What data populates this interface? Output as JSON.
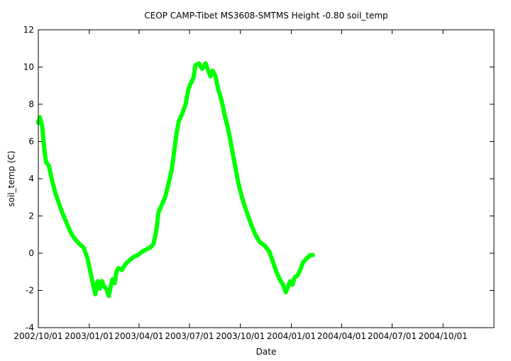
{
  "chart_data": {
    "type": "line",
    "title": "CEOP CAMP-Tibet MS3608-SMTMS Height -0.80 soil_temp",
    "xlabel": "Date",
    "ylabel": "soil_temp (C)",
    "ylim": [
      -4,
      12
    ],
    "xlim": [
      "2002/10/01",
      "2005/01/01"
    ],
    "y_ticks": [
      -4,
      -2,
      0,
      2,
      4,
      6,
      8,
      10,
      12
    ],
    "x_ticks": [
      {
        "date": "2002/10/01",
        "label": "2002/10/01"
      },
      {
        "date": "2003/01/01",
        "label": "2003/01/01"
      },
      {
        "date": "2003/04/01",
        "label": "2003/04/01"
      },
      {
        "date": "2003/07/01",
        "label": "2003/07/01"
      },
      {
        "date": "2003/10/01",
        "label": "2003/10/01"
      },
      {
        "date": "2004/01/01",
        "label": "2004/01/01"
      },
      {
        "date": "2004/04/01",
        "label": "2004/04/01"
      },
      {
        "date": "2004/07/01",
        "label": "2004/07/01"
      },
      {
        "date": "2004/10/01",
        "label": "2004/10/01"
      }
    ],
    "grid": false,
    "series": [
      {
        "color": "#00ff00",
        "points": [
          [
            "2002/10/01",
            7.0
          ],
          [
            "2002/10/04",
            7.3
          ],
          [
            "2002/10/08",
            6.8
          ],
          [
            "2002/10/12",
            5.5
          ],
          [
            "2002/10/15",
            4.9
          ],
          [
            "2002/10/20",
            4.7
          ],
          [
            "2002/10/26",
            3.9
          ],
          [
            "2002/11/01",
            3.2
          ],
          [
            "2002/11/07",
            2.7
          ],
          [
            "2002/11/13",
            2.2
          ],
          [
            "2002/11/20",
            1.7
          ],
          [
            "2002/11/27",
            1.2
          ],
          [
            "2002/12/05",
            0.8
          ],
          [
            "2002/12/14",
            0.5
          ],
          [
            "2002/12/22",
            0.3
          ],
          [
            "2002/12/29",
            -0.3
          ],
          [
            "2003/01/03",
            -1.0
          ],
          [
            "2003/01/08",
            -1.7
          ],
          [
            "2003/01/12",
            -2.2
          ],
          [
            "2003/01/16",
            -1.5
          ],
          [
            "2003/01/20",
            -1.9
          ],
          [
            "2003/01/24",
            -1.5
          ],
          [
            "2003/01/28",
            -1.8
          ],
          [
            "2003/02/01",
            -1.9
          ],
          [
            "2003/02/05",
            -2.3
          ],
          [
            "2003/02/08",
            -1.9
          ],
          [
            "2003/02/12",
            -1.4
          ],
          [
            "2003/02/16",
            -1.6
          ],
          [
            "2003/02/19",
            -1.0
          ],
          [
            "2003/02/23",
            -0.8
          ],
          [
            "2003/03/01",
            -0.9
          ],
          [
            "2003/03/07",
            -0.6
          ],
          [
            "2003/03/14",
            -0.4
          ],
          [
            "2003/03/22",
            -0.2
          ],
          [
            "2003/03/30",
            -0.1
          ],
          [
            "2003/04/07",
            0.1
          ],
          [
            "2003/04/14",
            0.2
          ],
          [
            "2003/04/21",
            0.3
          ],
          [
            "2003/04/27",
            0.5
          ],
          [
            "2003/05/02",
            1.2
          ],
          [
            "2003/05/06",
            2.2
          ],
          [
            "2003/05/12",
            2.6
          ],
          [
            "2003/05/18",
            3.0
          ],
          [
            "2003/05/24",
            3.7
          ],
          [
            "2003/05/30",
            4.5
          ],
          [
            "2003/06/04",
            5.6
          ],
          [
            "2003/06/08",
            6.5
          ],
          [
            "2003/06/12",
            7.1
          ],
          [
            "2003/06/18",
            7.5
          ],
          [
            "2003/06/24",
            8.0
          ],
          [
            "2003/06/29",
            8.8
          ],
          [
            "2003/07/03",
            9.1
          ],
          [
            "2003/07/08",
            9.4
          ],
          [
            "2003/07/12",
            10.1
          ],
          [
            "2003/07/18",
            10.2
          ],
          [
            "2003/07/24",
            9.9
          ],
          [
            "2003/07/30",
            10.2
          ],
          [
            "2003/08/04",
            9.8
          ],
          [
            "2003/08/08",
            9.5
          ],
          [
            "2003/08/12",
            9.8
          ],
          [
            "2003/08/17",
            9.5
          ],
          [
            "2003/08/22",
            8.8
          ],
          [
            "2003/08/28",
            8.2
          ],
          [
            "2003/09/02",
            7.5
          ],
          [
            "2003/09/07",
            6.9
          ],
          [
            "2003/09/12",
            6.2
          ],
          [
            "2003/09/17",
            5.4
          ],
          [
            "2003/09/22",
            4.6
          ],
          [
            "2003/09/27",
            3.8
          ],
          [
            "2003/10/03",
            3.1
          ],
          [
            "2003/10/09",
            2.5
          ],
          [
            "2003/10/15",
            2.0
          ],
          [
            "2003/10/21",
            1.5
          ],
          [
            "2003/10/28",
            1.0
          ],
          [
            "2003/11/05",
            0.6
          ],
          [
            "2003/11/14",
            0.4
          ],
          [
            "2003/11/22",
            0.1
          ],
          [
            "2003/11/29",
            -0.5
          ],
          [
            "2003/12/05",
            -1.0
          ],
          [
            "2003/12/11",
            -1.4
          ],
          [
            "2003/12/17",
            -1.7
          ],
          [
            "2003/12/22",
            -2.1
          ],
          [
            "2003/12/26",
            -1.8
          ],
          [
            "2003/12/30",
            -1.5
          ],
          [
            "2004/01/03",
            -1.7
          ],
          [
            "2004/01/07",
            -1.3
          ],
          [
            "2004/01/12",
            -1.2
          ],
          [
            "2004/01/17",
            -0.9
          ],
          [
            "2004/01/22",
            -0.5
          ],
          [
            "2004/01/28",
            -0.3
          ],
          [
            "2004/02/04",
            -0.1
          ],
          [
            "2004/02/09",
            -0.1
          ]
        ]
      }
    ]
  }
}
